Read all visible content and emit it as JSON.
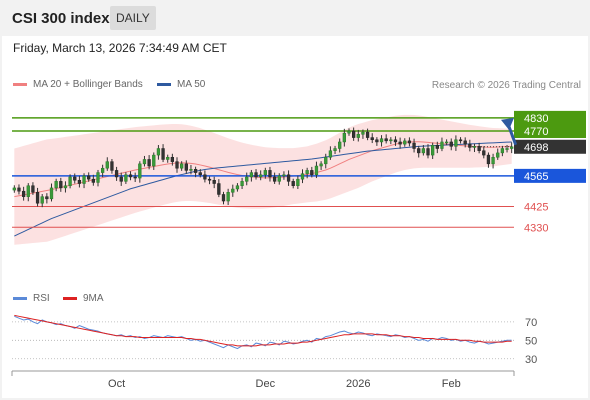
{
  "header": {
    "title": "CSI 300 index",
    "timeframe": "DAILY"
  },
  "datetime": "Friday, March 13, 2026 7:34:49 AM CET",
  "legend": {
    "ma20": {
      "label": "MA 20 + Bollinger Bands",
      "color": "#f08080"
    },
    "ma50": {
      "label": "MA 50",
      "color": "#2e5aa0"
    }
  },
  "copyright": "Research © 2026 Trading Central",
  "rsi_legend": {
    "rsi": {
      "label": "RSI",
      "color": "#5b8ad8"
    },
    "ma9": {
      "label": "9MA",
      "color": "#dd2222"
    }
  },
  "chart_data": [
    {
      "type": "candlestick",
      "title": "CSI 300 index",
      "x_labels": [
        "Oct",
        "Dec",
        "2026",
        "Feb"
      ],
      "ylim": [
        4080,
        4930
      ],
      "levels": [
        {
          "value": 4830,
          "label": "4830",
          "kind": "resistance",
          "color": "#4c9a10"
        },
        {
          "value": 4770,
          "label": "4770",
          "kind": "resistance",
          "color": "#4c9a10"
        },
        {
          "value": 4698,
          "label": "4698",
          "kind": "last",
          "color": "#333333"
        },
        {
          "value": 4565,
          "label": "4565",
          "kind": "pivot",
          "color": "#1a56db"
        },
        {
          "value": 4425,
          "label": "4425",
          "kind": "support",
          "color": "#e05050"
        },
        {
          "value": 4330,
          "label": "4330",
          "kind": "support",
          "color": "#e05050"
        }
      ],
      "close": [
        4510,
        4495,
        4470,
        4520,
        4490,
        4440,
        4470,
        4460,
        4510,
        4540,
        4510,
        4520,
        4560,
        4545,
        4530,
        4565,
        4550,
        4535,
        4580,
        4600,
        4630,
        4590,
        4560,
        4540,
        4570,
        4560,
        4555,
        4620,
        4640,
        4610,
        4660,
        4690,
        4640,
        4650,
        4630,
        4600,
        4620,
        4590,
        4595,
        4580,
        4570,
        4550,
        4545,
        4530,
        4480,
        4450,
        4490,
        4505,
        4520,
        4540,
        4560,
        4580,
        4560,
        4570,
        4590,
        4560,
        4540,
        4565,
        4570,
        4540,
        4520,
        4550,
        4575,
        4590,
        4570,
        4610,
        4620,
        4650,
        4680,
        4690,
        4720,
        4760,
        4770,
        4740,
        4755,
        4765,
        4740,
        4730,
        4720,
        4735,
        4725,
        4730,
        4720,
        4710,
        4725,
        4715,
        4690,
        4670,
        4690,
        4660,
        4705,
        4690,
        4720,
        4720,
        4700,
        4730,
        4725,
        4710,
        4695,
        4700,
        4680,
        4660,
        4620,
        4650,
        4670,
        4690,
        4690,
        4698
      ],
      "ma50": [
        4290,
        4300,
        4310,
        4320,
        4330,
        4340,
        4350,
        4360,
        4370,
        4378,
        4386,
        4394,
        4402,
        4410,
        4418,
        4426,
        4434,
        4442,
        4450,
        4458,
        4466,
        4474,
        4482,
        4490,
        4498,
        4506,
        4512,
        4518,
        4524,
        4530,
        4536,
        4542,
        4548,
        4554,
        4560,
        4566,
        4571,
        4576,
        4581,
        4586,
        4590,
        4594,
        4597,
        4600,
        4602,
        4604,
        4606,
        4608,
        4610,
        4612,
        4614,
        4616,
        4618,
        4620,
        4622,
        4624,
        4626,
        4628,
        4630,
        4632,
        4634,
        4636,
        4638,
        4640,
        4642,
        4645,
        4648,
        4651,
        4654,
        4657,
        4660,
        4663,
        4666,
        4669,
        4672,
        4675,
        4678,
        4680,
        4682,
        4684,
        4686,
        4688,
        4690,
        4692,
        4694,
        4696,
        4698,
        4700,
        4701,
        4702,
        4703,
        4704,
        4705,
        4706,
        4707,
        4708,
        4709,
        4710,
        4711,
        4712,
        4713,
        4714,
        4715,
        4716,
        4717,
        4718,
        4719,
        4720
      ],
      "ma20": [
        4470,
        4474,
        4478,
        4482,
        4486,
        4490,
        4494,
        4498,
        4502,
        4507,
        4512,
        4517,
        4522,
        4527,
        4532,
        4537,
        4542,
        4547,
        4552,
        4557,
        4562,
        4567,
        4572,
        4577,
        4582,
        4587,
        4592,
        4596,
        4600,
        4604,
        4608,
        4612,
        4616,
        4619,
        4622,
        4624,
        4625,
        4624,
        4622,
        4619,
        4615,
        4610,
        4605,
        4599,
        4593,
        4587,
        4581,
        4576,
        4571,
        4567,
        4564,
        4561,
        4559,
        4557,
        4556,
        4556,
        4557,
        4558,
        4560,
        4562,
        4564,
        4566,
        4569,
        4572,
        4576,
        4580,
        4586,
        4592,
        4600,
        4610,
        4620,
        4630,
        4640,
        4648,
        4656,
        4664,
        4672,
        4680,
        4686,
        4692,
        4698,
        4704,
        4710,
        4714,
        4718,
        4720,
        4721,
        4721,
        4720,
        4718,
        4716,
        4714,
        4712,
        4710,
        4708,
        4706,
        4704,
        4702,
        4700,
        4699,
        4698,
        4697,
        4696,
        4696,
        4697,
        4698,
        4699,
        4700
      ],
      "bb_width": [
        220,
        222,
        224,
        226,
        228,
        230,
        232,
        234,
        232,
        230,
        228,
        226,
        224,
        222,
        220,
        218,
        216,
        214,
        212,
        210,
        208,
        206,
        204,
        202,
        200,
        198,
        196,
        194,
        192,
        190,
        188,
        186,
        184,
        182,
        180,
        178,
        176,
        174,
        172,
        170,
        168,
        166,
        164,
        162,
        160,
        158,
        156,
        154,
        152,
        150,
        148,
        146,
        144,
        142,
        140,
        138,
        136,
        134,
        132,
        130,
        128,
        128,
        128,
        128,
        130,
        132,
        134,
        136,
        138,
        140,
        142,
        144,
        146,
        146,
        146,
        144,
        142,
        140,
        138,
        136,
        134,
        132,
        130,
        128,
        126,
        124,
        122,
        120,
        118,
        116,
        114,
        112,
        110,
        108,
        106,
        104,
        102,
        100,
        98,
        96,
        94,
        92,
        90,
        88,
        86,
        84,
        82,
        80
      ]
    },
    {
      "type": "line",
      "title": "RSI",
      "ylim": [
        20,
        85
      ],
      "y_ticks": [
        70,
        50,
        30
      ],
      "series": [
        {
          "name": "RSI",
          "color": "#5b8ad8",
          "values": [
            76,
            74,
            72,
            73,
            70,
            68,
            72,
            70,
            69,
            67,
            68,
            66,
            65,
            63,
            66,
            64,
            62,
            61,
            60,
            58,
            57,
            56,
            55,
            56,
            54,
            55,
            53,
            54,
            52,
            53,
            55,
            54,
            53,
            55,
            54,
            53,
            54,
            52,
            50,
            51,
            49,
            50,
            48,
            46,
            44,
            42,
            45,
            43,
            41,
            44,
            45,
            43,
            47,
            46,
            44,
            48,
            47,
            45,
            49,
            48,
            46,
            47,
            49,
            50,
            48,
            52,
            51,
            54,
            55,
            57,
            59,
            60,
            58,
            57,
            59,
            58,
            56,
            55,
            57,
            56,
            55,
            54,
            56,
            55,
            53,
            54,
            52,
            50,
            51,
            49,
            52,
            51,
            53,
            52,
            50,
            51,
            49,
            50,
            48,
            47,
            49,
            48,
            46,
            47,
            48,
            49,
            50,
            50
          ]
        },
        {
          "name": "9MA",
          "color": "#dd2222",
          "values": [
            77,
            76,
            75,
            74,
            73,
            72,
            71,
            70,
            69,
            68,
            67,
            66,
            65,
            64,
            63,
            62,
            61,
            60,
            59,
            58,
            57,
            56,
            55,
            55,
            54,
            54,
            54,
            53,
            53,
            53,
            53,
            53,
            53,
            53,
            53,
            53,
            53,
            52,
            52,
            51,
            51,
            50,
            49,
            48,
            47,
            46,
            45,
            45,
            44,
            44,
            44,
            44,
            44,
            45,
            45,
            45,
            46,
            46,
            46,
            47,
            47,
            47,
            48,
            48,
            49,
            50,
            51,
            52,
            53,
            54,
            55,
            56,
            56,
            57,
            57,
            57,
            57,
            57,
            56,
            56,
            56,
            55,
            55,
            55,
            54,
            54,
            53,
            53,
            52,
            52,
            52,
            51,
            51,
            51,
            51,
            51,
            50,
            50,
            50,
            49,
            49,
            48,
            48,
            48,
            48,
            48,
            49,
            49
          ]
        }
      ]
    }
  ]
}
